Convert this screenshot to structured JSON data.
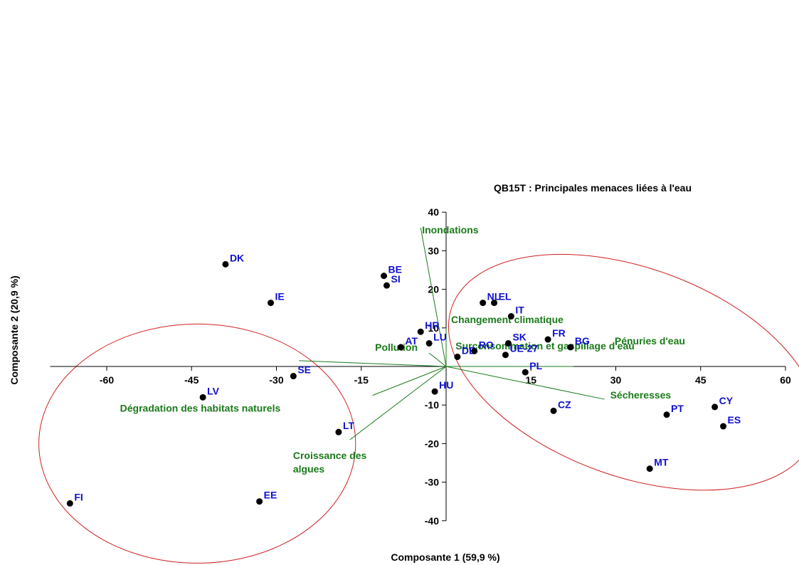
{
  "chart_data": {
    "type": "scatter",
    "title": "QB15T : Principales menaces liées à l'eau",
    "xlabel": "Composante 1 (59,9 %)",
    "ylabel": "Composante 2 (20,9 %)",
    "xlim": [
      -70,
      60
    ],
    "ylim": [
      -40,
      40
    ],
    "x_ticks": [
      -60,
      -45,
      -30,
      -15,
      15,
      30,
      45,
      60
    ],
    "y_ticks": [
      40,
      30,
      20,
      10,
      -10,
      -20,
      -30,
      -40
    ],
    "grid": false,
    "countries": [
      {
        "label": "DK",
        "x": -39,
        "y": 26.5
      },
      {
        "label": "BE",
        "x": -11,
        "y": 23.5
      },
      {
        "label": "SI",
        "x": -10.5,
        "y": 21
      },
      {
        "label": "IE",
        "x": -31,
        "y": 16.5
      },
      {
        "label": "NL",
        "x": 6.5,
        "y": 16.5
      },
      {
        "label": "EL",
        "x": 8.5,
        "y": 16.5
      },
      {
        "label": "IT",
        "x": 11.5,
        "y": 13
      },
      {
        "label": "HR",
        "x": -4.5,
        "y": 9
      },
      {
        "label": "LU",
        "x": -3,
        "y": 6
      },
      {
        "label": "AT",
        "x": -8,
        "y": 5
      },
      {
        "label": "DE",
        "x": 2,
        "y": 2.5
      },
      {
        "label": "RO",
        "x": 5,
        "y": 4
      },
      {
        "label": "SK",
        "x": 11,
        "y": 6
      },
      {
        "label": "UE-27",
        "x": 10.5,
        "y": 3
      },
      {
        "label": "FR",
        "x": 18,
        "y": 7
      },
      {
        "label": "BG",
        "x": 22,
        "y": 5
      },
      {
        "label": "PL",
        "x": 14,
        "y": -1.5
      },
      {
        "label": "SE",
        "x": -27,
        "y": -2.5
      },
      {
        "label": "HU",
        "x": -2,
        "y": -6.5
      },
      {
        "label": "LV",
        "x": -43,
        "y": -8
      },
      {
        "label": "CZ",
        "x": 19,
        "y": -11.5
      },
      {
        "label": "LT",
        "x": -19,
        "y": -17
      },
      {
        "label": "CY",
        "x": 47.5,
        "y": -10.5
      },
      {
        "label": "PT",
        "x": 39,
        "y": -12.5
      },
      {
        "label": "ES",
        "x": 49,
        "y": -15.5
      },
      {
        "label": "MT",
        "x": 36,
        "y": -26.5
      },
      {
        "label": "EE",
        "x": -33,
        "y": -35
      },
      {
        "label": "FI",
        "x": -66.5,
        "y": -35.5
      }
    ],
    "variables": [
      {
        "label": "Inondations",
        "x": -4.5,
        "y": 36
      },
      {
        "label": "Changement climatique",
        "x": 0,
        "y": 10
      },
      {
        "label": "Pénuries d'eau",
        "x": 22.5,
        "y": 0
      },
      {
        "label": "Sécheresses",
        "x": 28,
        "y": -8.5
      },
      {
        "label": "Pollution",
        "x": -3,
        "y": 3.5
      },
      {
        "label": "Surconsommation et gaspillage d'eau",
        "x": -26,
        "y": 1.5
      },
      {
        "label": "Dégradation des habitats naturels",
        "x": -13,
        "y": -7.5
      },
      {
        "label": "Croissance des|algues",
        "x": -17,
        "y": -19
      }
    ],
    "ellipses": [
      {
        "cx": -44,
        "cy": -20,
        "rx": 28,
        "ry": 31,
        "rotate_deg": 0
      },
      {
        "cx": 33,
        "cy": -1.5,
        "rx": 34,
        "ry": 27,
        "rotate_deg": 20
      }
    ],
    "colors": {
      "points": "#000000",
      "country_labels": "#1010d0",
      "variable_lines": "#1a7a1a",
      "variable_labels": "#1a7a1a",
      "ellipses": "#d02020",
      "axes": "#000000"
    }
  }
}
